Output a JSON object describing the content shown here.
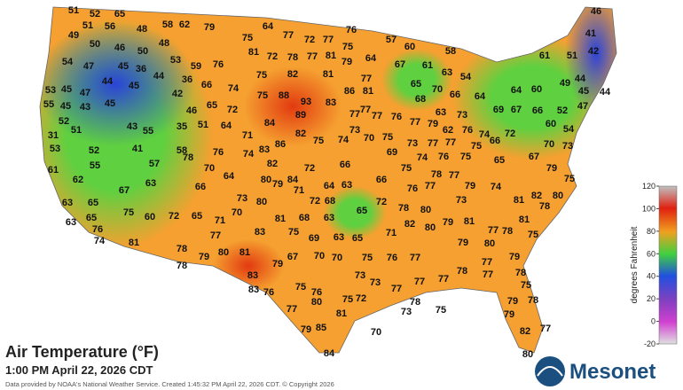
{
  "title": "Air Temperature (°F)",
  "timestamp": "1:00 PM April 22, 2026 CDT",
  "credit": "Data provided by NOAA's National Weather Service. Created 1:45:32 PM April 22, 2026 CDT. © Copyright 2026",
  "brand": "Mesonet",
  "colorbar": {
    "label": "degrees Fahrenheit",
    "range": [
      -20,
      120
    ],
    "ticks": [
      120,
      100,
      80,
      60,
      40,
      20,
      0,
      -20
    ]
  },
  "temperatures": [
    51,
    52,
    65,
    46,
    51,
    56,
    48,
    58,
    62,
    79,
    64,
    76,
    41,
    49,
    50,
    48,
    75,
    77,
    72,
    77,
    57,
    60,
    42,
    75,
    81,
    72,
    78,
    77,
    81,
    46,
    50,
    58,
    61,
    51,
    54,
    47,
    45,
    36,
    59,
    76,
    79,
    64,
    67,
    61,
    63,
    54,
    44,
    53,
    44,
    45,
    36,
    66,
    42,
    74,
    82,
    81,
    77,
    75,
    53,
    45,
    47,
    86,
    81,
    65,
    70,
    66,
    64,
    64,
    60,
    49,
    44,
    55,
    45,
    43,
    75,
    88,
    93,
    83,
    77,
    68,
    45,
    44,
    52,
    45,
    46,
    65,
    72,
    84,
    89,
    77,
    77,
    76,
    63,
    73,
    69,
    67,
    66,
    52,
    47,
    51,
    43,
    55,
    35,
    51,
    64,
    82,
    75,
    74,
    73,
    70,
    75,
    77,
    79,
    62,
    76,
    74,
    72,
    60,
    54,
    31,
    53,
    52,
    41,
    58,
    71,
    83,
    86,
    69,
    73,
    77,
    77,
    75,
    66,
    70,
    73,
    61,
    55,
    57,
    78,
    76,
    74,
    82,
    80,
    72,
    66,
    74,
    76,
    75,
    65,
    67,
    79,
    62,
    70,
    64,
    84,
    71,
    64,
    63,
    66,
    75,
    78,
    77,
    79,
    74,
    82,
    80,
    75,
    67,
    63,
    66,
    73,
    80,
    79,
    72,
    68,
    76,
    77,
    63,
    65,
    75,
    60,
    72,
    65,
    71,
    70,
    81,
    68,
    63,
    65,
    72,
    78,
    80,
    79,
    81,
    73,
    81,
    78,
    63,
    65,
    76,
    74,
    81,
    77,
    83,
    75,
    69,
    63,
    65,
    71,
    82,
    80,
    81,
    78,
    77,
    75,
    79,
    80,
    78,
    78,
    79,
    80,
    81,
    67,
    70,
    70,
    75,
    76,
    77,
    77,
    79,
    79,
    83,
    73,
    78,
    77,
    78,
    83,
    76,
    75,
    76,
    73,
    77,
    77,
    77,
    75,
    77,
    80,
    75,
    72,
    78,
    73,
    75,
    79,
    78,
    81,
    79,
    79,
    85,
    70,
    82,
    77,
    84,
    80
  ]
}
